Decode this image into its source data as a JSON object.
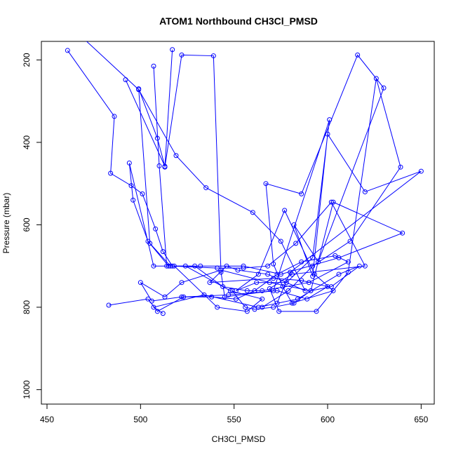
{
  "chart_data": {
    "type": "line",
    "title": "ATOM1 Northbound CH3Cl_PMSD",
    "xlabel": "CH3Cl_PMSD",
    "ylabel": "Pressure (mbar)",
    "xlim": [
      447,
      657
    ],
    "ylim": [
      1035,
      155
    ],
    "y_reversed": true,
    "grid": false,
    "legend": "none",
    "xticks": [
      450,
      500,
      550,
      600,
      650
    ],
    "yticks": [
      200,
      400,
      600,
      800,
      1000
    ],
    "series_color": "#0000ff",
    "marker": "open-circle",
    "series": [
      {
        "name": "",
        "x": [
          470,
          499,
          519,
          535,
          560,
          575,
          588,
          568,
          552,
          546,
          537,
          571,
          586,
          600,
          589,
          573,
          547,
          523,
          509,
          504,
          483
        ],
        "y": [
          150,
          272,
          432,
          510,
          570,
          640,
          760,
          720,
          710,
          700,
          740,
          730,
          735,
          750,
          780,
          760,
          770,
          775,
          810,
          780,
          795
        ]
      },
      {
        "name": "",
        "x": [
          461,
          486,
          484,
          495,
          501,
          508,
          512,
          517,
          529,
          544,
          557,
          565,
          590,
          611,
          604,
          586,
          573,
          561,
          551,
          538,
          522,
          506,
          500,
          513,
          522,
          543,
          569,
          591,
          602,
          617,
          606,
          584,
          563,
          534,
          507,
          512
        ],
        "y": [
          177,
          337,
          475,
          505,
          525,
          610,
          665,
          700,
          700,
          750,
          760,
          760,
          740,
          690,
          675,
          690,
          720,
          760,
          780,
          775,
          775,
          785,
          740,
          775,
          740,
          710,
          740,
          760,
          750,
          700,
          720,
          780,
          800,
          770,
          800,
          815
        ]
      },
      {
        "name": "",
        "x": [
          507,
          510,
          514,
          524,
          548,
          565,
          557,
          541,
          518,
          507,
          494,
          496,
          504,
          515,
          532,
          555,
          575,
          606,
          640,
          603,
          591,
          582,
          571,
          561,
          556,
          549
        ],
        "y": [
          215,
          457,
          700,
          700,
          760,
          780,
          810,
          800,
          700,
          700,
          450,
          540,
          640,
          700,
          700,
          700,
          720,
          680,
          620,
          545,
          760,
          790,
          800,
          805,
          800,
          760
        ]
      },
      {
        "name": "",
        "x": [
          492,
          513,
          509,
          499,
          505,
          516,
          541,
          555,
          568,
          583,
          602,
          620,
          581,
          569,
          574,
          594,
          611,
          626,
          639,
          612,
          592,
          579,
          565
        ],
        "y": [
          248,
          458,
          390,
          270,
          645,
          700,
          705,
          705,
          700,
          645,
          545,
          700,
          720,
          755,
          810,
          810,
          715,
          245,
          460,
          640,
          700,
          760,
          800
        ]
      },
      {
        "name": "",
        "x": [
          517,
          513,
          522,
          539,
          543,
          545,
          571,
          601,
          592,
          578,
          562,
          551,
          563,
          577,
          593,
          603,
          581,
          576,
          571,
          567,
          586,
          616,
          630,
          595,
          582,
          592,
          600,
          620,
          650,
          580,
          573
        ],
        "y": [
          175,
          460,
          188,
          190,
          715,
          775,
          760,
          345,
          680,
          740,
          740,
          760,
          720,
          565,
          720,
          760,
          790,
          750,
          695,
          500,
          525,
          188,
          268,
          690,
          600,
          725,
          380,
          520,
          470,
          715,
          790
        ]
      }
    ]
  }
}
